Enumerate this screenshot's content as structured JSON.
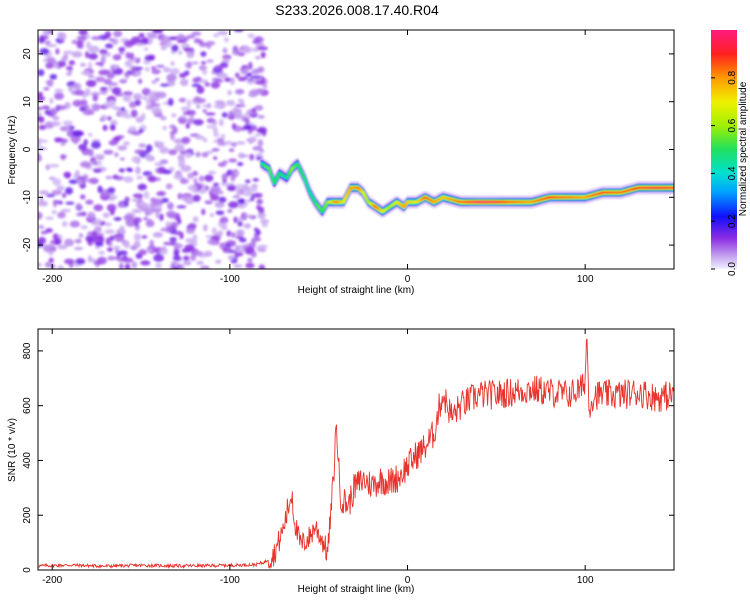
{
  "title": "S233.2026.008.17.40.R04",
  "chart_data": [
    {
      "type": "heatmap",
      "title": "S233.2026.008.17.40.R04",
      "xlabel": "Height of straight line (km)",
      "ylabel": "Frequency (Hz)",
      "xlim": [
        -208,
        150
      ],
      "ylim": [
        -25,
        25
      ],
      "xticks": [
        -200,
        -100,
        0,
        100
      ],
      "yticks": [
        -20,
        -10,
        0,
        10,
        20
      ],
      "noise_region_x": [
        -208,
        -80
      ],
      "ridge": {
        "x": [
          -82,
          -78,
          -75,
          -72,
          -68,
          -65,
          -62,
          -58,
          -55,
          -52,
          -50,
          -48,
          -45,
          -40,
          -36,
          -32,
          -28,
          -25,
          -22,
          -18,
          -14,
          -10,
          -6,
          -2,
          0,
          5,
          10,
          15,
          20,
          30,
          40,
          50,
          60,
          70,
          80,
          90,
          100,
          110,
          120,
          130,
          140,
          150
        ],
        "y": [
          -3,
          -4,
          -7,
          -5,
          -6,
          -4,
          -3,
          -6,
          -9,
          -11,
          -12,
          -13,
          -11,
          -11,
          -11,
          -8,
          -8,
          -9,
          -11,
          -12,
          -13,
          -12,
          -11,
          -12,
          -11,
          -11,
          -10,
          -11,
          -10,
          -11,
          -11,
          -11,
          -11,
          -11,
          -10,
          -10,
          -10,
          -9,
          -9,
          -8,
          -8,
          -8
        ],
        "amp": [
          0.5,
          0.55,
          0.5,
          0.5,
          0.45,
          0.6,
          0.5,
          0.5,
          0.45,
          0.5,
          0.55,
          0.5,
          0.6,
          0.85,
          0.7,
          0.8,
          0.85,
          0.7,
          0.6,
          0.85,
          0.7,
          0.6,
          0.7,
          0.8,
          0.75,
          0.7,
          0.85,
          0.8,
          0.75,
          0.85,
          0.98,
          0.95,
          0.85,
          0.8,
          0.9,
          0.85,
          0.8,
          0.9,
          0.85,
          0.9,
          0.95,
          0.9
        ]
      },
      "colorbar": {
        "label": "Normalized spectral amplitude",
        "min": 0.0,
        "max": 1.0,
        "ticks": [
          "0.0",
          "0.2",
          "0.4",
          "0.6",
          "0.8"
        ]
      }
    },
    {
      "type": "line",
      "xlabel": "Height of straight line (km)",
      "ylabel": "SNR (10 * v/v)",
      "xlim": [
        -208,
        150
      ],
      "ylim": [
        0,
        880
      ],
      "xticks": [
        -200,
        -100,
        0,
        100
      ],
      "yticks": [
        0,
        200,
        400,
        600,
        800
      ],
      "series": [
        {
          "name": "SNR",
          "color": "#e8322b",
          "x": [
            -208,
            -190,
            -170,
            -150,
            -130,
            -110,
            -95,
            -85,
            -80,
            -75,
            -72,
            -70,
            -68,
            -65,
            -64,
            -62,
            -60,
            -55,
            -52,
            -48,
            -45,
            -42,
            -40,
            -38,
            -36,
            -33,
            -30,
            -25,
            -20,
            -15,
            -10,
            -5,
            0,
            5,
            10,
            15,
            18,
            20,
            25,
            30,
            40,
            50,
            60,
            70,
            80,
            90,
            98,
            100,
            101,
            102,
            105,
            110,
            120,
            130,
            140,
            150
          ],
          "y": [
            15,
            18,
            14,
            17,
            15,
            16,
            18,
            20,
            30,
            60,
            110,
            150,
            200,
            290,
            200,
            130,
            90,
            120,
            160,
            110,
            60,
            300,
            540,
            280,
            250,
            240,
            300,
            330,
            310,
            330,
            320,
            340,
            380,
            420,
            450,
            500,
            600,
            640,
            560,
            600,
            640,
            640,
            650,
            660,
            650,
            640,
            660,
            700,
            880,
            600,
            640,
            640,
            640,
            650,
            630,
            640
          ]
        }
      ]
    }
  ]
}
